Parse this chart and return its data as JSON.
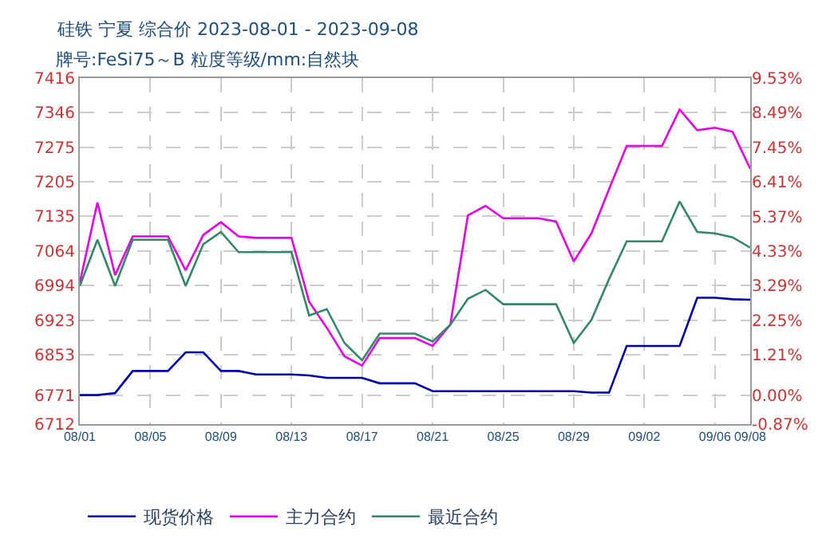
{
  "chart_data": {
    "type": "line",
    "title": "硅铁 宁夏 综合价 2023-08-01 - 2023-09-08",
    "subtitle": "牌号:FeSi75～B 粒度等级/mm:自然块",
    "x": [
      "2023-08-01",
      "2023-08-02",
      "2023-08-03",
      "2023-08-04",
      "2023-08-05",
      "2023-08-06",
      "2023-08-07",
      "2023-08-08",
      "2023-08-09",
      "2023-08-10",
      "2023-08-11",
      "2023-08-12",
      "2023-08-13",
      "2023-08-14",
      "2023-08-15",
      "2023-08-16",
      "2023-08-17",
      "2023-08-18",
      "2023-08-19",
      "2023-08-20",
      "2023-08-21",
      "2023-08-22",
      "2023-08-23",
      "2023-08-24",
      "2023-08-25",
      "2023-08-26",
      "2023-08-27",
      "2023-08-28",
      "2023-08-29",
      "2023-08-30",
      "2023-08-31",
      "2023-09-01",
      "2023-09-02",
      "2023-09-03",
      "2023-09-04",
      "2023-09-05",
      "2023-09-06",
      "2023-09-07",
      "2023-09-08"
    ],
    "series": [
      {
        "name": "现货价格",
        "color": "#0000aa",
        "values": [
          6771,
          6771,
          6775,
          6820,
          6820,
          6820,
          6858,
          6858,
          6820,
          6820,
          6813,
          6813,
          6813,
          6811,
          6806,
          6806,
          6806,
          6795,
          6795,
          6795,
          6779,
          6779,
          6779,
          6779,
          6779,
          6779,
          6779,
          6779,
          6779,
          6776,
          6776,
          6871,
          6871,
          6871,
          6871,
          6969,
          6969,
          6966,
          6965
        ]
      },
      {
        "name": "主力合约",
        "color": "#e600e6",
        "values": [
          7000,
          7163,
          7015,
          7094,
          7094,
          7094,
          7025,
          7097,
          7123,
          7094,
          7091,
          7091,
          7091,
          6961,
          6908,
          6850,
          6831,
          6887,
          6887,
          6887,
          6871,
          6914,
          7137,
          7156,
          7131,
          7131,
          7131,
          7124,
          7043,
          7100,
          7190,
          7278,
          7278,
          7278,
          7352,
          7310,
          7315,
          7307,
          7232
        ]
      },
      {
        "name": "最近合约",
        "color": "#338866",
        "values": [
          6993,
          7087,
          6993,
          7087,
          7087,
          7087,
          6993,
          7078,
          7103,
          7062,
          7062,
          7062,
          7062,
          6933,
          6946,
          6877,
          6842,
          6896,
          6896,
          6896,
          6880,
          6914,
          6967,
          6985,
          6956,
          6956,
          6956,
          6956,
          6877,
          6924,
          7007,
          7084,
          7084,
          7084,
          7165,
          7103,
          7100,
          7092,
          7071
        ]
      }
    ],
    "xlim": [
      "2023-08-01",
      "2023-09-08"
    ],
    "xticks": [
      {
        "value": "2023-08-01",
        "label": "08/01"
      },
      {
        "value": "2023-08-05",
        "label": "08/05"
      },
      {
        "value": "2023-08-09",
        "label": "08/09"
      },
      {
        "value": "2023-08-13",
        "label": "08/13"
      },
      {
        "value": "2023-08-17",
        "label": "08/17"
      },
      {
        "value": "2023-08-21",
        "label": "08/21"
      },
      {
        "value": "2023-08-25",
        "label": "08/25"
      },
      {
        "value": "2023-08-29",
        "label": "08/29"
      },
      {
        "value": "2023-09-02",
        "label": "09/02"
      },
      {
        "value": "2023-09-06",
        "label": "09/06"
      },
      {
        "value": "2023-09-08",
        "label": "09/08"
      }
    ],
    "ylim": [
      6712,
      7416
    ],
    "yticks": [
      6712,
      6771,
      6853,
      6923,
      6994,
      7064,
      7135,
      7205,
      7275,
      7346,
      7416
    ],
    "y2lim": [
      -0.87,
      9.53
    ],
    "y2ticks": [
      {
        "value": -0.87,
        "label": "-0.87%"
      },
      {
        "value": 0,
        "label": "0.00%"
      },
      {
        "value": 1.21,
        "label": "1.21%"
      },
      {
        "value": 2.25,
        "label": "2.25%"
      },
      {
        "value": 3.29,
        "label": "3.29%"
      },
      {
        "value": 4.33,
        "label": "4.33%"
      },
      {
        "value": 5.37,
        "label": "5.37%"
      },
      {
        "value": 6.41,
        "label": "6.41%"
      },
      {
        "value": 7.45,
        "label": "7.45%"
      },
      {
        "value": 8.49,
        "label": "8.49%"
      },
      {
        "value": 9.53,
        "label": "9.53%"
      }
    ],
    "grid": true,
    "legend": "bottom",
    "marker": "none",
    "line_style": "solid"
  }
}
